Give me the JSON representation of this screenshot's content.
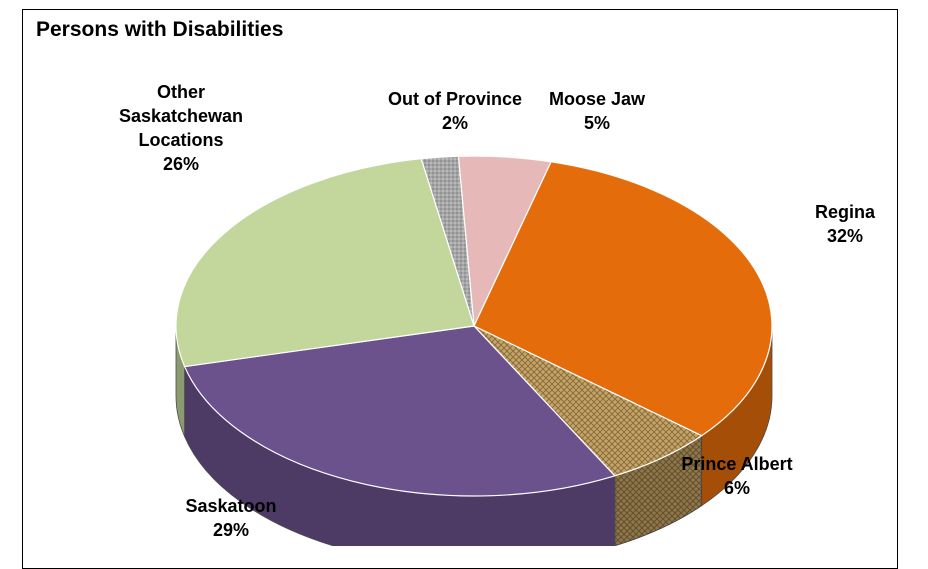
{
  "chart_data": {
    "type": "pie",
    "style": "3d",
    "title": "Persons with Disabilities",
    "slices": [
      {
        "label_lines": [
          "Moose Jaw"
        ],
        "value": 5,
        "pct": "5%",
        "color": "#e6b9b8",
        "pattern": "none"
      },
      {
        "label_lines": [
          "Regina"
        ],
        "value": 32,
        "pct": "32%",
        "color": "#e46c0a",
        "pattern": "none"
      },
      {
        "label_lines": [
          "Prince Albert"
        ],
        "value": 6,
        "pct": "6%",
        "color": "#c4a66b",
        "pattern": "weave"
      },
      {
        "label_lines": [
          "Saskatoon"
        ],
        "value": 29,
        "pct": "29%",
        "color": "#6b528d",
        "pattern": "none"
      },
      {
        "label_lines": [
          "Other",
          "Saskatchewan",
          "Locations"
        ],
        "value": 26,
        "pct": "26%",
        "color": "#c3d69b",
        "pattern": "none"
      },
      {
        "label_lines": [
          "Out of Province"
        ],
        "value": 2,
        "pct": "2%",
        "color": "#a6a6a6",
        "pattern": "dots"
      }
    ]
  }
}
